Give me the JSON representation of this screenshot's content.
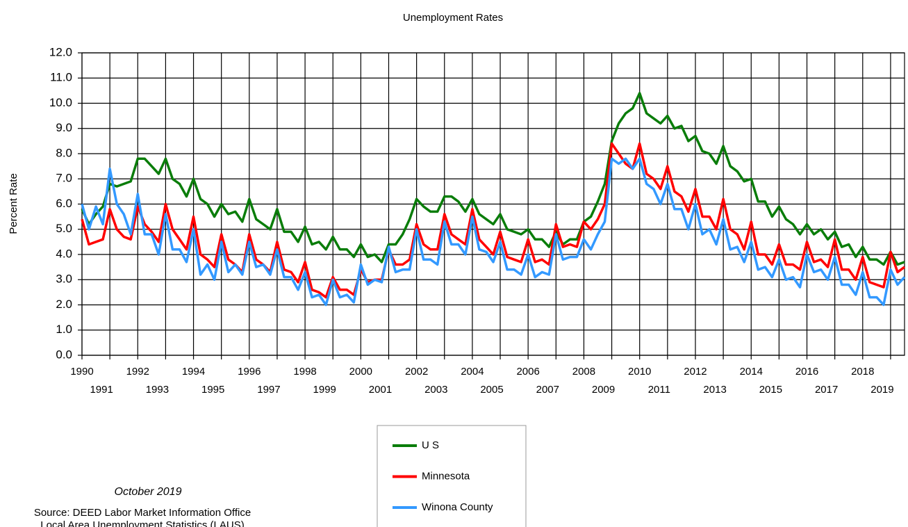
{
  "chart_data": {
    "type": "line",
    "title": "Unemployment Rates",
    "y_label": "Percent Rate",
    "notes": [
      "October 2019",
      "Source: DEED Labor Market Information Office",
      "Local Area Unemployment Statistics (LAUS)"
    ],
    "xlim": [
      1990,
      2019.5
    ],
    "xticks": [
      1990,
      1991,
      1992,
      1993,
      1994,
      1995,
      1996,
      1997,
      1998,
      1999,
      2000,
      2001,
      2002,
      2003,
      2004,
      2005,
      2006,
      2007,
      2008,
      2009,
      2010,
      2011,
      2012,
      2013,
      2014,
      2015,
      2016,
      2017,
      2018,
      2019
    ],
    "ylim": [
      0,
      12
    ],
    "yticks": [
      {
        "value": 0,
        "label": "0.0"
      },
      {
        "value": 1,
        "label": "1.0"
      },
      {
        "value": 2,
        "label": "2.0"
      },
      {
        "value": 3,
        "label": "3.0"
      },
      {
        "value": 4,
        "label": "4.0"
      },
      {
        "value": 5,
        "label": "5.0"
      },
      {
        "value": 6,
        "label": "6.0"
      },
      {
        "value": 7,
        "label": "7.0"
      },
      {
        "value": 8,
        "label": "8.0"
      },
      {
        "value": 9,
        "label": "9.0"
      },
      {
        "value": 10,
        "label": "10.0"
      },
      {
        "value": 11,
        "label": "11.0"
      },
      {
        "value": 12,
        "label": "12.0"
      }
    ],
    "grid": true,
    "x": [
      1990,
      1990.25,
      1990.5,
      1990.75,
      1991,
      1991.25,
      1991.5,
      1991.75,
      1992,
      1992.25,
      1992.5,
      1992.75,
      1993,
      1993.25,
      1993.5,
      1993.75,
      1994,
      1994.25,
      1994.5,
      1994.75,
      1995,
      1995.25,
      1995.5,
      1995.75,
      1996,
      1996.25,
      1996.5,
      1996.75,
      1997,
      1997.25,
      1997.5,
      1997.75,
      1998,
      1998.25,
      1998.5,
      1998.75,
      1999,
      1999.25,
      1999.5,
      1999.75,
      2000,
      2000.25,
      2000.5,
      2000.75,
      2001,
      2001.25,
      2001.5,
      2001.75,
      2002,
      2002.25,
      2002.5,
      2002.75,
      2003,
      2003.25,
      2003.5,
      2003.75,
      2004,
      2004.25,
      2004.5,
      2004.75,
      2005,
      2005.25,
      2005.5,
      2005.75,
      2006,
      2006.25,
      2006.5,
      2006.75,
      2007,
      2007.25,
      2007.5,
      2007.75,
      2008,
      2008.25,
      2008.5,
      2008.75,
      2009,
      2009.25,
      2009.5,
      2009.75,
      2010,
      2010.25,
      2010.5,
      2010.75,
      2011,
      2011.25,
      2011.5,
      2011.75,
      2012,
      2012.25,
      2012.5,
      2012.75,
      2013,
      2013.25,
      2013.5,
      2013.75,
      2014,
      2014.25,
      2014.5,
      2014.75,
      2015,
      2015.25,
      2015.5,
      2015.75,
      2016,
      2016.25,
      2016.5,
      2016.75,
      2017,
      2017.25,
      2017.5,
      2017.75,
      2018,
      2018.25,
      2018.5,
      2018.75,
      2019,
      2019.25,
      2019.5
    ],
    "series": [
      {
        "name": "U S",
        "color": "#0a7d0a",
        "values": [
          5.8,
          5.2,
          5.6,
          5.9,
          6.8,
          6.7,
          6.8,
          6.9,
          7.8,
          7.8,
          7.5,
          7.2,
          7.8,
          7.0,
          6.8,
          6.3,
          7.0,
          6.2,
          6.0,
          5.5,
          6.0,
          5.6,
          5.7,
          5.3,
          6.2,
          5.4,
          5.2,
          5.0,
          5.8,
          4.9,
          4.9,
          4.5,
          5.1,
          4.4,
          4.5,
          4.2,
          4.7,
          4.2,
          4.2,
          3.9,
          4.4,
          3.9,
          4.0,
          3.7,
          4.4,
          4.4,
          4.8,
          5.4,
          6.2,
          5.9,
          5.7,
          5.7,
          6.3,
          6.3,
          6.1,
          5.7,
          6.2,
          5.6,
          5.4,
          5.2,
          5.6,
          5.0,
          4.9,
          4.8,
          5.0,
          4.6,
          4.6,
          4.3,
          4.9,
          4.4,
          4.6,
          4.6,
          5.3,
          5.5,
          6.1,
          6.8,
          8.5,
          9.2,
          9.6,
          9.8,
          10.4,
          9.6,
          9.4,
          9.2,
          9.5,
          9.0,
          9.1,
          8.5,
          8.7,
          8.1,
          8.0,
          7.6,
          8.3,
          7.5,
          7.3,
          6.9,
          7.0,
          6.1,
          6.1,
          5.5,
          5.9,
          5.4,
          5.2,
          4.8,
          5.2,
          4.8,
          5.0,
          4.6,
          4.9,
          4.3,
          4.4,
          3.9,
          4.3,
          3.8,
          3.8,
          3.6,
          4.1,
          3.6,
          3.7
        ]
      },
      {
        "name": "Minnesota",
        "color": "#ff0000",
        "values": [
          5.4,
          4.4,
          4.5,
          4.6,
          5.8,
          5.0,
          4.7,
          4.6,
          5.9,
          5.2,
          4.9,
          4.5,
          6.0,
          5.0,
          4.6,
          4.2,
          5.5,
          4.0,
          3.8,
          3.5,
          4.8,
          3.8,
          3.6,
          3.3,
          4.8,
          3.8,
          3.6,
          3.3,
          4.5,
          3.4,
          3.3,
          2.9,
          3.7,
          2.6,
          2.5,
          2.3,
          3.1,
          2.6,
          2.6,
          2.4,
          3.4,
          2.9,
          3.0,
          3.0,
          4.2,
          3.6,
          3.6,
          3.8,
          5.2,
          4.4,
          4.2,
          4.2,
          5.6,
          4.8,
          4.6,
          4.4,
          5.8,
          4.6,
          4.3,
          4.0,
          4.9,
          3.9,
          3.8,
          3.7,
          4.6,
          3.7,
          3.8,
          3.6,
          5.2,
          4.3,
          4.4,
          4.3,
          5.3,
          5.0,
          5.4,
          6.0,
          8.4,
          8.0,
          7.6,
          7.4,
          8.4,
          7.2,
          7.0,
          6.6,
          7.5,
          6.5,
          6.3,
          5.7,
          6.6,
          5.5,
          5.5,
          5.0,
          6.2,
          5.0,
          4.8,
          4.2,
          5.3,
          4.0,
          4.0,
          3.6,
          4.4,
          3.6,
          3.6,
          3.4,
          4.5,
          3.7,
          3.8,
          3.5,
          4.6,
          3.4,
          3.4,
          3.0,
          3.9,
          2.9,
          2.8,
          2.7,
          4.1,
          3.3,
          3.5
        ]
      },
      {
        "name": "Winona County",
        "color": "#3399ff",
        "values": [
          6.0,
          5.0,
          5.9,
          5.2,
          7.4,
          6.0,
          5.6,
          4.8,
          6.4,
          4.8,
          4.8,
          4.0,
          5.6,
          4.2,
          4.2,
          3.7,
          5.0,
          3.2,
          3.6,
          3.0,
          4.5,
          3.3,
          3.6,
          3.2,
          4.5,
          3.5,
          3.6,
          3.2,
          4.2,
          3.1,
          3.1,
          2.6,
          3.3,
          2.3,
          2.4,
          2.0,
          3.0,
          2.3,
          2.4,
          2.1,
          3.6,
          2.8,
          3.0,
          2.9,
          4.3,
          3.3,
          3.4,
          3.4,
          5.0,
          3.8,
          3.8,
          3.6,
          5.3,
          4.4,
          4.4,
          4.0,
          5.5,
          4.2,
          4.1,
          3.7,
          4.5,
          3.4,
          3.4,
          3.2,
          4.0,
          3.1,
          3.3,
          3.2,
          4.8,
          3.8,
          3.9,
          3.9,
          4.6,
          4.2,
          4.8,
          5.3,
          7.8,
          7.6,
          7.8,
          7.4,
          7.8,
          6.8,
          6.6,
          6.0,
          6.8,
          5.8,
          5.8,
          5.0,
          6.0,
          4.8,
          5.0,
          4.4,
          5.4,
          4.2,
          4.3,
          3.7,
          4.5,
          3.4,
          3.5,
          3.1,
          3.8,
          3.0,
          3.1,
          2.7,
          4.0,
          3.3,
          3.4,
          3.0,
          3.9,
          2.8,
          2.8,
          2.4,
          3.3,
          2.3,
          2.3,
          2.0,
          3.4,
          2.8,
          3.1
        ]
      }
    ]
  }
}
